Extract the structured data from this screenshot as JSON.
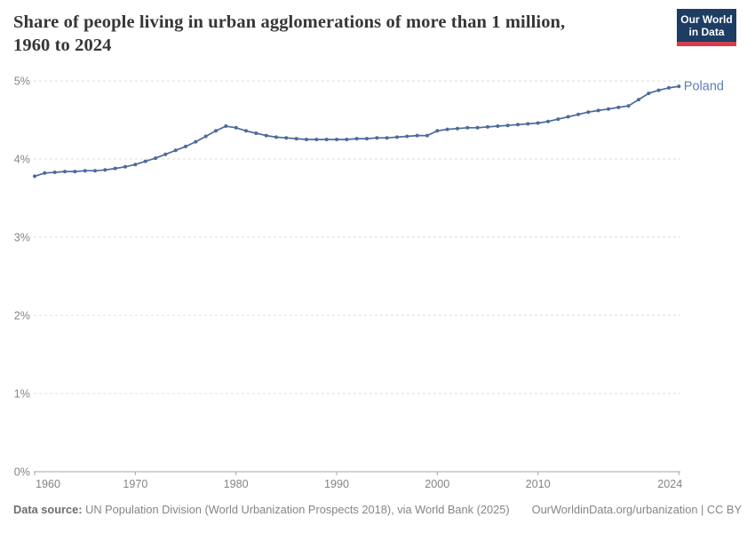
{
  "header": {
    "title_line1": "Share of people living in urban agglomerations of more than 1 million,",
    "title_line2": "1960 to 2024"
  },
  "logo": {
    "line1": "Our World",
    "line2": "in Data",
    "bg_color": "#1d3d63",
    "bar_color": "#d73c4c"
  },
  "chart_data": {
    "type": "line",
    "title": "Share of people living in urban agglomerations of more than 1 million, 1960 to 2024",
    "grid": "dashed-horizontal",
    "legend_position": "end-of-line-label",
    "xlim": [
      1960,
      2024
    ],
    "ylim": [
      0,
      5
    ],
    "x_ticks": [
      1960,
      1970,
      1980,
      1990,
      2000,
      2010,
      2024
    ],
    "y_ticks": [
      "0%",
      "1%",
      "2%",
      "3%",
      "4%",
      "5%"
    ],
    "line_color": "#4c6a9c",
    "label_color": "#5b7db8",
    "series": [
      {
        "name": "Poland",
        "start_year": 1960,
        "values": [
          3.78,
          3.82,
          3.83,
          3.84,
          3.84,
          3.85,
          3.85,
          3.86,
          3.88,
          3.9,
          3.93,
          3.97,
          4.01,
          4.06,
          4.11,
          4.16,
          4.22,
          4.29,
          4.36,
          4.42,
          4.4,
          4.36,
          4.33,
          4.3,
          4.28,
          4.27,
          4.26,
          4.25,
          4.25,
          4.25,
          4.25,
          4.25,
          4.26,
          4.26,
          4.27,
          4.27,
          4.28,
          4.29,
          4.3,
          4.3,
          4.36,
          4.38,
          4.39,
          4.4,
          4.4,
          4.41,
          4.42,
          4.43,
          4.44,
          4.45,
          4.46,
          4.48,
          4.51,
          4.54,
          4.57,
          4.6,
          4.62,
          4.64,
          4.66,
          4.68,
          4.76,
          4.84,
          4.88,
          4.91,
          4.93
        ]
      }
    ]
  },
  "footer": {
    "datasource_label": "Data source:",
    "datasource_text": " UN Population Division (World Urbanization Prospects 2018), via World Bank (2025)",
    "link_text": "OurWorldinData.org/urbanization",
    "license_text": " | CC BY"
  }
}
